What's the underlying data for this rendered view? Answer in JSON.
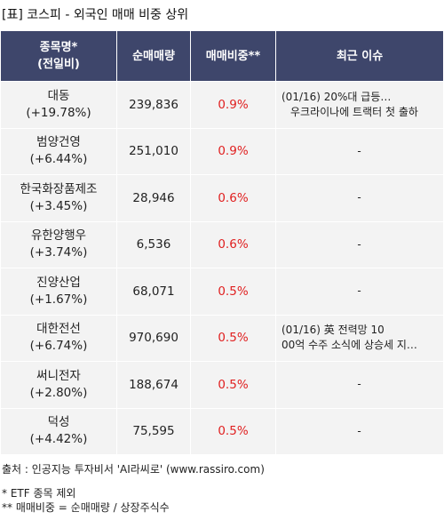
{
  "title": "[표] 코스피 - 외국인 매매 비중 상위",
  "headers": {
    "name_line1": "종목명*",
    "name_line2": "(전일비)",
    "volume": "순매매량",
    "ratio": "매매비중**",
    "issue": "최근 이슈"
  },
  "rows": [
    {
      "name": "대동",
      "change": "(+19.78%)",
      "volume": "239,836",
      "ratio": "0.9%",
      "issue1": "(01/16) 20%대 급등…",
      "issue2": "우크라이나에 트랙터 첫 출하"
    },
    {
      "name": "범양건영",
      "change": "(+6.44%)",
      "volume": "251,010",
      "ratio": "0.9%",
      "issue1": "-",
      "issue2": ""
    },
    {
      "name": "한국화장품제조",
      "change": "(+3.45%)",
      "volume": "28,946",
      "ratio": "0.6%",
      "issue1": "-",
      "issue2": ""
    },
    {
      "name": "유한양행우",
      "change": "(+3.74%)",
      "volume": "6,536",
      "ratio": "0.6%",
      "issue1": "-",
      "issue2": ""
    },
    {
      "name": "진양산업",
      "change": "(+1.67%)",
      "volume": "68,071",
      "ratio": "0.5%",
      "issue1": "-",
      "issue2": ""
    },
    {
      "name": "대한전선",
      "change": "(+6.74%)",
      "volume": "970,690",
      "ratio": "0.5%",
      "issue1": "(01/16) 英 전력망 10",
      "issue2": "00억 수주 소식에 상승세 지…"
    },
    {
      "name": "써니전자",
      "change": "(+2.80%)",
      "volume": "188,674",
      "ratio": "0.5%",
      "issue1": "-",
      "issue2": ""
    },
    {
      "name": "덕성",
      "change": "(+4.42%)",
      "volume": "75,595",
      "ratio": "0.5%",
      "issue1": "-",
      "issue2": ""
    }
  ],
  "source": "출처 : 인공지능 투자비서 'AI라씨로' (www.rassiro.com)",
  "note1": "* ETF 종목 제외",
  "note2": "** 매매비중 = 순매매량 / 상장주식수"
}
